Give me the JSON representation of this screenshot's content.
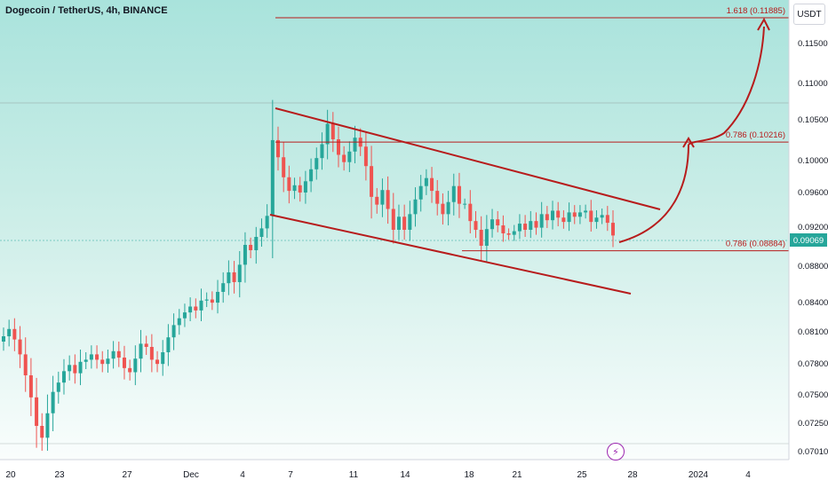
{
  "header": {
    "title": "Dogecoin / TetherUS, 4h, BINANCE",
    "currency_button": "USDT"
  },
  "icons": {
    "events": "lightning-icon"
  },
  "colors": {
    "up": "#26a69a",
    "down": "#ef5350",
    "annotation": "#b71c1c",
    "price_tag": "#26a69a"
  },
  "chart_data": {
    "type": "candlestick",
    "title": "Dogecoin / TetherUS, 4h, BINANCE",
    "y_ticks": [
      "0.11500",
      "0.11000",
      "0.10500",
      "0.10000",
      "0.09600",
      "0.09200",
      "0.08800",
      "0.08400",
      "0.08100",
      "0.07800",
      "0.07500",
      "0.07250",
      "0.07010"
    ],
    "x_ticks": [
      "20",
      "23",
      "27",
      "Dec",
      "4",
      "7",
      "11",
      "14",
      "18",
      "21",
      "25",
      "28",
      "2024",
      "4"
    ],
    "last_price": "0.09069",
    "levels": [
      {
        "label": "1.618 (0.11885)",
        "value": 0.11885
      },
      {
        "label": "0.786 (0.10216)",
        "value": 0.10216
      },
      {
        "label": "0.786 (0.08884)",
        "value": 0.08884
      }
    ],
    "channel": {
      "upper": {
        "from": [
          "Dec 5",
          0.1063
        ],
        "to": [
          "Dec 28",
          0.0938
        ]
      },
      "lower": {
        "from": [
          "Dec 5",
          0.093
        ],
        "to": [
          "Dec 28",
          0.085
        ]
      }
    },
    "projection": "curved arrow from 0.0907 up to 0.1022, then to 0.11885",
    "closes": [
      0.0805,
      0.0812,
      0.0802,
      0.0788,
      0.0768,
      0.0747,
      0.0722,
      0.0712,
      0.0733,
      0.0752,
      0.0761,
      0.0772,
      0.0778,
      0.077,
      0.0781,
      0.0783,
      0.0788,
      0.0783,
      0.0779,
      0.0784,
      0.0791,
      0.0785,
      0.0775,
      0.0771,
      0.0784,
      0.0798,
      0.0795,
      0.0783,
      0.0779,
      0.079,
      0.0804,
      0.0816,
      0.0823,
      0.0829,
      0.0835,
      0.0831,
      0.0841,
      0.0842,
      0.0839,
      0.0849,
      0.0857,
      0.0867,
      0.0858,
      0.0874,
      0.0895,
      0.0889,
      0.0905,
      0.0917,
      0.0932,
      0.1024,
      0.1003,
      0.0978,
      0.0961,
      0.0968,
      0.0959,
      0.0973,
      0.0988,
      0.1002,
      0.1019,
      0.1044,
      0.1025,
      0.1006,
      0.0997,
      0.101,
      0.1027,
      0.1016,
      0.0992,
      0.0954,
      0.0945,
      0.0962,
      0.094,
      0.0915,
      0.0931,
      0.0915,
      0.0934,
      0.0951,
      0.0967,
      0.0977,
      0.0961,
      0.0946,
      0.0934,
      0.0948,
      0.0967,
      0.0946,
      0.0946,
      0.0926,
      0.0915,
      0.0894,
      0.0916,
      0.0928,
      0.0921,
      0.091,
      0.0908,
      0.0913,
      0.0923,
      0.0915,
      0.0926,
      0.0918,
      0.0934,
      0.0927,
      0.0938,
      0.093,
      0.0925,
      0.0936,
      0.0931,
      0.0936,
      0.0938,
      0.0925,
      0.093,
      0.0933,
      0.0924,
      0.0907
    ]
  }
}
